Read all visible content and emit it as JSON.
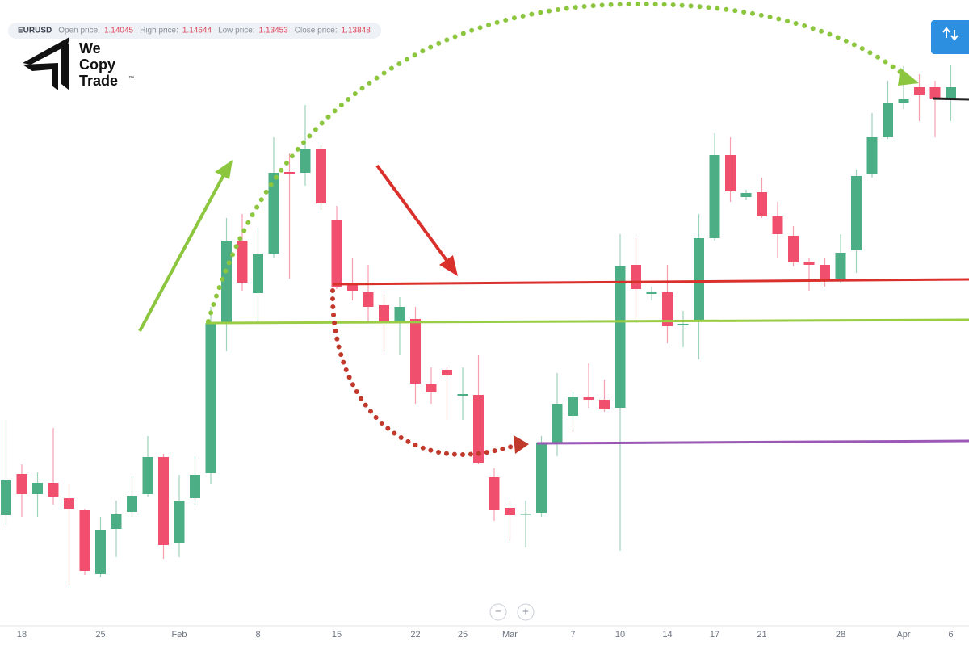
{
  "header": {
    "symbol": "EURUSD",
    "fields": [
      {
        "label": "Open price:",
        "value": "1.14045"
      },
      {
        "label": "High price:",
        "value": "1.14644"
      },
      {
        "label": "Low price:",
        "value": "1.13453"
      },
      {
        "label": "Close price:",
        "value": "1.13848"
      }
    ]
  },
  "logo": {
    "lines": [
      "We",
      "Copy",
      "Trade"
    ],
    "mark": "™"
  },
  "zoom": {
    "out": "−",
    "in": "+"
  },
  "chart_data": {
    "type": "candlestick",
    "up_color": "#4cae84",
    "down_color": "#f0506e",
    "ylim": [
      1.08,
      1.16
    ],
    "categories": [
      null,
      "18",
      null,
      null,
      null,
      null,
      "25",
      null,
      null,
      null,
      null,
      "Feb",
      null,
      null,
      null,
      null,
      "8",
      null,
      null,
      null,
      null,
      "15",
      null,
      null,
      null,
      null,
      "22",
      null,
      null,
      "25",
      null,
      null,
      "Mar",
      null,
      null,
      null,
      "7",
      null,
      null,
      "10",
      null,
      null,
      "14",
      null,
      null,
      "17",
      null,
      null,
      "21",
      null,
      null,
      null,
      null,
      "28",
      null,
      null,
      null,
      "Apr",
      null,
      null,
      "6"
    ],
    "open": [
      1.0962,
      1.1013,
      1.0988,
      1.1002,
      1.0983,
      1.0968,
      1.0889,
      1.0945,
      1.0966,
      1.0988,
      1.1034,
      1.0928,
      1.0983,
      1.1014,
      1.12,
      1.1302,
      1.1237,
      1.1286,
      1.1387,
      1.1386,
      1.1416,
      1.1328,
      1.1248,
      1.1238,
      1.1222,
      1.1202,
      1.1205,
      1.1124,
      1.1142,
      1.111,
      1.1111,
      1.1009,
      1.0971,
      1.0963,
      1.0965,
      1.1052,
      1.1085,
      1.1108,
      1.1105,
      1.1095,
      1.1272,
      1.1236,
      1.1238,
      1.1197,
      1.1202,
      1.1305,
      1.1408,
      1.1356,
      1.1362,
      1.1332,
      1.1308,
      1.1276,
      1.1272,
      1.1255,
      1.129,
      1.1384,
      1.143,
      1.1472,
      1.1492,
      1.1492,
      1.1478
    ],
    "high": [
      1.108,
      1.1025,
      1.1015,
      1.107,
      1.1,
      1.097,
      1.096,
      1.098,
      1.101,
      1.106,
      1.1038,
      1.1012,
      1.1035,
      1.122,
      1.133,
      1.1335,
      1.1318,
      1.143,
      1.141,
      1.147,
      1.142,
      1.1345,
      1.128,
      1.1272,
      1.1235,
      1.1232,
      1.122,
      1.1145,
      1.1145,
      1.1145,
      1.116,
      1.102,
      1.098,
      1.098,
      1.106,
      1.1138,
      1.1115,
      1.115,
      1.113,
      1.131,
      1.1305,
      1.1245,
      1.1272,
      1.1215,
      1.1335,
      1.1435,
      1.143,
      1.1365,
      1.138,
      1.135,
      1.132,
      1.128,
      1.128,
      1.131,
      1.139,
      1.146,
      1.15,
      1.1518,
      1.1508,
      1.15,
      1.152
    ],
    "low": [
      1.095,
      1.096,
      1.096,
      1.0975,
      1.0875,
      1.0888,
      1.0885,
      1.091,
      1.096,
      1.0985,
      1.0908,
      1.091,
      1.0975,
      1.1,
      1.1165,
      1.124,
      1.12,
      1.128,
      1.1255,
      1.137,
      1.134,
      1.1242,
      1.1228,
      1.1202,
      1.1165,
      1.116,
      1.11,
      1.11,
      1.108,
      1.108,
      1.1025,
      1.0955,
      1.093,
      1.0922,
      1.096,
      1.1035,
      1.1065,
      1.1095,
      1.109,
      1.0918,
      1.12,
      1.1228,
      1.1175,
      1.117,
      1.1155,
      1.1302,
      1.135,
      1.1352,
      1.133,
      1.128,
      1.127,
      1.124,
      1.1245,
      1.125,
      1.1262,
      1.138,
      1.1428,
      1.1465,
      1.145,
      1.143,
      1.145
    ],
    "close": [
      1.1005,
      1.0988,
      1.1002,
      1.0985,
      1.097,
      1.0893,
      1.0944,
      1.0964,
      1.0986,
      1.1034,
      1.0925,
      1.098,
      1.1012,
      1.12,
      1.1302,
      1.125,
      1.1286,
      1.1386,
      1.1385,
      1.1416,
      1.1348,
      1.1245,
      1.124,
      1.122,
      1.1202,
      1.122,
      1.1125,
      1.1114,
      1.1135,
      1.1112,
      1.1027,
      1.0968,
      1.0962,
      1.0964,
      1.1052,
      1.11,
      1.1108,
      1.1105,
      1.1093,
      1.127,
      1.1242,
      1.1238,
      1.1196,
      1.1199,
      1.1305,
      1.1408,
      1.1363,
      1.1361,
      1.1332,
      1.131,
      1.1275,
      1.1272,
      1.1252,
      1.1287,
      1.1382,
      1.143,
      1.1472,
      1.1478,
      1.1482,
      1.1478,
      1.1492
    ]
  }
}
